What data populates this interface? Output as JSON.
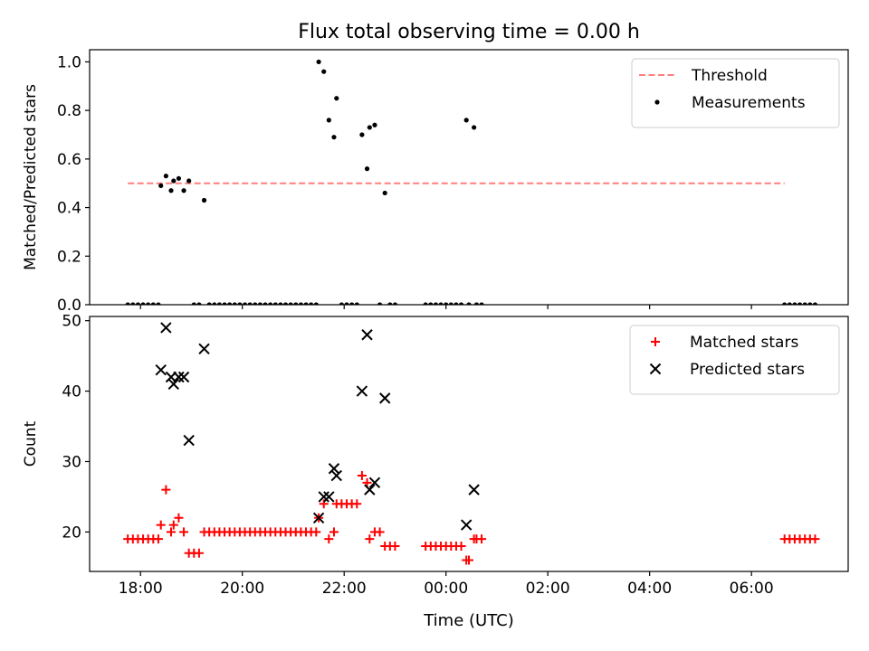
{
  "chart_data": {
    "title": "Flux total observing time = 0.00 h",
    "xlabel": "Time (UTC)",
    "x_unit": "hours (UTC, continuing past midnight)",
    "xlim": [
      17.0,
      31.9
    ],
    "x_ticks": [
      {
        "value": 18,
        "label": "18:00"
      },
      {
        "value": 20,
        "label": "20:00"
      },
      {
        "value": 22,
        "label": "22:00"
      },
      {
        "value": 24,
        "label": "00:00"
      },
      {
        "value": 26,
        "label": "02:00"
      },
      {
        "value": 28,
        "label": "04:00"
      },
      {
        "value": 30,
        "label": "06:00"
      }
    ],
    "panels": [
      {
        "type": "scatter",
        "ylabel": "Matched/Predicted stars",
        "ylim": [
          0.0,
          1.05
        ],
        "y_ticks": [
          {
            "value": 0.0,
            "label": "0.0"
          },
          {
            "value": 0.2,
            "label": "0.2"
          },
          {
            "value": 0.4,
            "label": "0.4"
          },
          {
            "value": 0.6,
            "label": "0.6"
          },
          {
            "value": 0.8,
            "label": "0.8"
          },
          {
            "value": 1.0,
            "label": "1.0"
          }
        ],
        "legend_position": "top-right",
        "threshold": {
          "name": "Threshold",
          "y": 0.5,
          "x_range": [
            17.75,
            30.65
          ],
          "color": "#ff7f7f"
        },
        "series": [
          {
            "name": "Measurements",
            "marker": "dot",
            "color": "#000000",
            "points": [
              [
                18.4,
                0.49
              ],
              [
                18.5,
                0.53
              ],
              [
                18.6,
                0.47
              ],
              [
                18.65,
                0.51
              ],
              [
                18.75,
                0.52
              ],
              [
                18.85,
                0.47
              ],
              [
                18.95,
                0.51
              ],
              [
                19.25,
                0.43
              ],
              [
                21.5,
                1.0
              ],
              [
                21.6,
                0.96
              ],
              [
                21.7,
                0.76
              ],
              [
                21.8,
                0.69
              ],
              [
                21.85,
                0.85
              ],
              [
                22.35,
                0.7
              ],
              [
                22.45,
                0.56
              ],
              [
                22.5,
                0.73
              ],
              [
                22.6,
                0.74
              ],
              [
                22.8,
                0.46
              ],
              [
                24.4,
                0.76
              ],
              [
                24.55,
                0.73
              ],
              [
                17.75,
                0
              ],
              [
                17.85,
                0
              ],
              [
                17.95,
                0
              ],
              [
                18.05,
                0
              ],
              [
                18.15,
                0
              ],
              [
                18.25,
                0
              ],
              [
                18.35,
                0
              ],
              [
                19.05,
                0
              ],
              [
                19.15,
                0
              ],
              [
                19.35,
                0
              ],
              [
                19.45,
                0
              ],
              [
                19.55,
                0
              ],
              [
                19.65,
                0
              ],
              [
                19.75,
                0
              ],
              [
                19.85,
                0
              ],
              [
                19.95,
                0
              ],
              [
                20.05,
                0
              ],
              [
                20.15,
                0
              ],
              [
                20.25,
                0
              ],
              [
                20.35,
                0
              ],
              [
                20.45,
                0
              ],
              [
                20.55,
                0
              ],
              [
                20.65,
                0
              ],
              [
                20.75,
                0
              ],
              [
                20.85,
                0
              ],
              [
                20.95,
                0
              ],
              [
                21.05,
                0
              ],
              [
                21.15,
                0
              ],
              [
                21.25,
                0
              ],
              [
                21.35,
                0
              ],
              [
                21.45,
                0
              ],
              [
                21.95,
                0
              ],
              [
                22.05,
                0
              ],
              [
                22.15,
                0
              ],
              [
                22.25,
                0
              ],
              [
                22.7,
                0
              ],
              [
                22.9,
                0
              ],
              [
                23.0,
                0
              ],
              [
                23.6,
                0
              ],
              [
                23.7,
                0
              ],
              [
                23.8,
                0
              ],
              [
                23.9,
                0
              ],
              [
                24.0,
                0
              ],
              [
                24.1,
                0
              ],
              [
                24.2,
                0
              ],
              [
                24.3,
                0
              ],
              [
                24.45,
                0
              ],
              [
                24.6,
                0
              ],
              [
                24.7,
                0
              ],
              [
                30.65,
                0
              ],
              [
                30.75,
                0
              ],
              [
                30.85,
                0
              ],
              [
                30.95,
                0
              ],
              [
                31.05,
                0
              ],
              [
                31.15,
                0
              ],
              [
                31.25,
                0
              ]
            ]
          }
        ]
      },
      {
        "type": "scatter",
        "ylabel": "Count",
        "ylim": [
          14.4,
          50.6
        ],
        "y_ticks": [
          {
            "value": 20,
            "label": "20"
          },
          {
            "value": 30,
            "label": "30"
          },
          {
            "value": 40,
            "label": "40"
          },
          {
            "value": 50,
            "label": "50"
          }
        ],
        "legend_position": "top-right",
        "series": [
          {
            "name": "Matched stars",
            "marker": "plus",
            "color": "#ff0000",
            "points": [
              [
                17.75,
                19
              ],
              [
                17.85,
                19
              ],
              [
                17.95,
                19
              ],
              [
                18.05,
                19
              ],
              [
                18.15,
                19
              ],
              [
                18.25,
                19
              ],
              [
                18.35,
                19
              ],
              [
                18.4,
                21
              ],
              [
                18.5,
                26
              ],
              [
                18.6,
                20
              ],
              [
                18.65,
                21
              ],
              [
                18.75,
                22
              ],
              [
                18.85,
                20
              ],
              [
                18.95,
                17
              ],
              [
                19.05,
                17
              ],
              [
                19.15,
                17
              ],
              [
                19.25,
                20
              ],
              [
                19.35,
                20
              ],
              [
                19.45,
                20
              ],
              [
                19.55,
                20
              ],
              [
                19.65,
                20
              ],
              [
                19.75,
                20
              ],
              [
                19.85,
                20
              ],
              [
                19.95,
                20
              ],
              [
                20.05,
                20
              ],
              [
                20.15,
                20
              ],
              [
                20.25,
                20
              ],
              [
                20.35,
                20
              ],
              [
                20.45,
                20
              ],
              [
                20.55,
                20
              ],
              [
                20.65,
                20
              ],
              [
                20.75,
                20
              ],
              [
                20.85,
                20
              ],
              [
                20.95,
                20
              ],
              [
                21.05,
                20
              ],
              [
                21.15,
                20
              ],
              [
                21.25,
                20
              ],
              [
                21.35,
                20
              ],
              [
                21.45,
                20
              ],
              [
                21.5,
                22
              ],
              [
                21.6,
                24
              ],
              [
                21.7,
                19
              ],
              [
                21.8,
                20
              ],
              [
                21.85,
                24
              ],
              [
                21.95,
                24
              ],
              [
                22.05,
                24
              ],
              [
                22.15,
                24
              ],
              [
                22.25,
                24
              ],
              [
                22.35,
                28
              ],
              [
                22.45,
                27
              ],
              [
                22.5,
                19
              ],
              [
                22.6,
                20
              ],
              [
                22.7,
                20
              ],
              [
                22.8,
                18
              ],
              [
                22.9,
                18
              ],
              [
                23.0,
                18
              ],
              [
                23.6,
                18
              ],
              [
                23.7,
                18
              ],
              [
                23.8,
                18
              ],
              [
                23.9,
                18
              ],
              [
                24.0,
                18
              ],
              [
                24.1,
                18
              ],
              [
                24.2,
                18
              ],
              [
                24.3,
                18
              ],
              [
                24.4,
                16
              ],
              [
                24.45,
                16
              ],
              [
                24.55,
                19
              ],
              [
                24.6,
                19
              ],
              [
                24.7,
                19
              ],
              [
                30.65,
                19
              ],
              [
                30.75,
                19
              ],
              [
                30.85,
                19
              ],
              [
                30.95,
                19
              ],
              [
                31.05,
                19
              ],
              [
                31.15,
                19
              ],
              [
                31.25,
                19
              ]
            ]
          },
          {
            "name": "Predicted stars",
            "marker": "x",
            "color": "#000000",
            "points": [
              [
                18.4,
                43
              ],
              [
                18.5,
                49
              ],
              [
                18.6,
                42
              ],
              [
                18.65,
                41
              ],
              [
                18.75,
                42
              ],
              [
                18.85,
                42
              ],
              [
                18.95,
                33
              ],
              [
                19.25,
                46
              ],
              [
                21.5,
                22
              ],
              [
                21.6,
                25
              ],
              [
                21.7,
                25
              ],
              [
                21.8,
                29
              ],
              [
                21.85,
                28
              ],
              [
                22.35,
                40
              ],
              [
                22.45,
                48
              ],
              [
                22.5,
                26
              ],
              [
                22.6,
                27
              ],
              [
                22.8,
                39
              ],
              [
                24.4,
                21
              ],
              [
                24.55,
                26
              ]
            ]
          }
        ]
      }
    ]
  }
}
